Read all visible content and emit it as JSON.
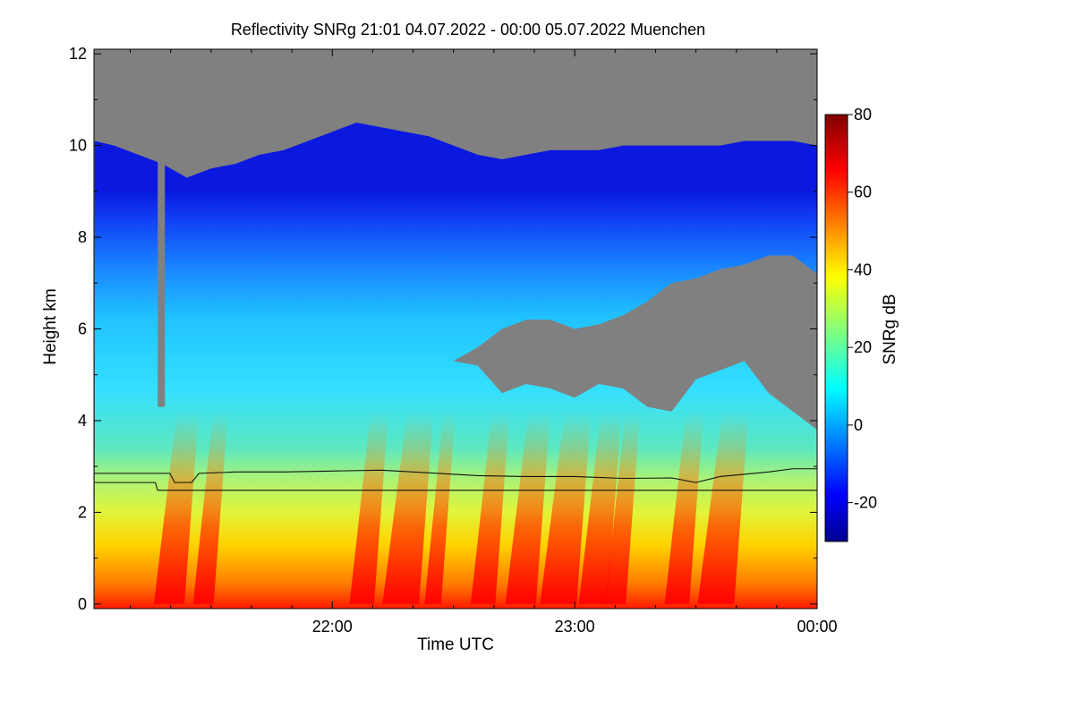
{
  "chart_data": {
    "type": "heatmap",
    "title": "Reflectivity SNRg",
    "time_range": "21:01 04.07.2022 - 00:00 05.07.2022",
    "location": "Muenchen",
    "xlabel": "Time UTC",
    "ylabel": "Height km",
    "x_ticks": [
      "22:00",
      "23:00",
      "00:00"
    ],
    "x_tick_values_hours": [
      22,
      23,
      24
    ],
    "x_range_hours": [
      21.017,
      24.0
    ],
    "y_ticks": [
      "0",
      "2",
      "4",
      "6",
      "8",
      "10",
      "12"
    ],
    "y_tick_values": [
      0,
      2,
      4,
      6,
      8,
      10,
      12
    ],
    "ylim": [
      -0.1,
      12.1
    ],
    "colorbar": {
      "label": "SNRg dB",
      "range": [
        -30,
        80
      ],
      "ticks": [
        "-20",
        "0",
        "20",
        "40",
        "60",
        "80"
      ],
      "tick_values": [
        -20,
        0,
        20,
        40,
        60,
        80
      ],
      "colormap": "jet"
    },
    "no_signal_color": "#808080",
    "series": [
      {
        "name": "cloud_top_km",
        "x_hours": [
          21.02,
          21.1,
          21.2,
          21.3,
          21.4,
          21.5,
          21.6,
          21.7,
          21.8,
          21.9,
          22.0,
          22.1,
          22.2,
          22.3,
          22.4,
          22.5,
          22.6,
          22.7,
          22.8,
          22.9,
          23.0,
          23.1,
          23.2,
          23.3,
          23.4,
          23.5,
          23.6,
          23.7,
          23.8,
          23.9,
          24.0
        ],
        "values": [
          10.1,
          10.0,
          9.8,
          9.6,
          9.3,
          9.5,
          9.6,
          9.8,
          9.9,
          10.1,
          10.3,
          10.5,
          10.4,
          10.3,
          10.2,
          10.0,
          9.8,
          9.7,
          9.8,
          9.9,
          9.9,
          9.9,
          10.0,
          10.0,
          10.0,
          10.0,
          10.0,
          10.1,
          10.1,
          10.1,
          10.0
        ]
      },
      {
        "name": "gray_bottom_boundary_km",
        "x_hours": [
          22.5,
          22.6,
          22.7,
          22.8,
          22.9,
          23.0,
          23.1,
          23.2,
          23.3,
          23.4,
          23.5,
          23.6,
          23.7,
          23.8,
          23.9,
          24.0
        ],
        "values": [
          5.3,
          5.2,
          4.6,
          4.8,
          4.7,
          4.5,
          4.8,
          4.7,
          4.3,
          4.2,
          4.9,
          5.1,
          5.3,
          4.6,
          4.2,
          3.8
        ]
      },
      {
        "name": "gray_top_boundary_km",
        "x_hours": [
          22.5,
          22.6,
          22.7,
          22.8,
          22.9,
          23.0,
          23.1,
          23.2,
          23.3,
          23.4,
          23.5,
          23.6,
          23.7,
          23.8,
          23.9,
          24.0
        ],
        "values": [
          5.3,
          5.6,
          6.0,
          6.2,
          6.2,
          6.0,
          6.1,
          6.3,
          6.6,
          7.0,
          7.1,
          7.3,
          7.4,
          7.6,
          7.6,
          7.2
        ]
      },
      {
        "name": "melting_layer_upper_km",
        "x_hours": [
          21.02,
          21.2,
          21.33,
          21.35,
          21.42,
          21.45,
          21.6,
          21.8,
          22.0,
          22.2,
          22.4,
          22.6,
          22.8,
          23.0,
          23.2,
          23.4,
          23.5,
          23.6,
          23.8,
          23.9,
          24.0
        ],
        "values": [
          2.85,
          2.85,
          2.85,
          2.65,
          2.65,
          2.85,
          2.88,
          2.88,
          2.9,
          2.92,
          2.86,
          2.8,
          2.78,
          2.78,
          2.74,
          2.75,
          2.65,
          2.78,
          2.88,
          2.95,
          2.95
        ]
      },
      {
        "name": "melting_layer_lower_km",
        "x_hours": [
          21.02,
          21.27,
          21.28,
          24.0
        ],
        "values": [
          2.65,
          2.65,
          2.48,
          2.48
        ]
      },
      {
        "name": "rain_streak_centers_hours",
        "x_hours": [
          21.3,
          21.45,
          22.1,
          22.25,
          22.4,
          22.6,
          22.75,
          22.9,
          23.05,
          23.15,
          23.4,
          23.55
        ],
        "values": [
          75,
          70,
          72,
          78,
          68,
          72,
          75,
          78,
          74,
          70,
          72,
          78
        ]
      }
    ]
  }
}
